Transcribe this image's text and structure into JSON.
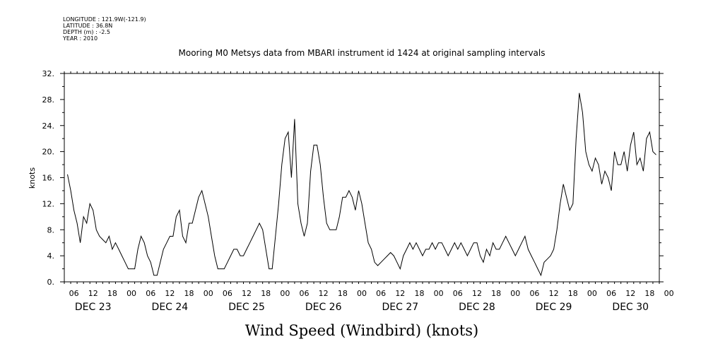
{
  "meta_lines": [
    "LONGITUDE : 121.9W(-121.9)",
    "LATITUDE : 36.8N",
    "DEPTH (m) : -2.5",
    "YEAR : 2010"
  ],
  "chart_data": {
    "type": "line",
    "title": "Mooring M0 Metsys data from MBARI instrument id 1424 at original sampling intervals",
    "xlabel": "Wind Speed (Windbird) (knots)",
    "ylabel": "knots",
    "ylim": [
      0,
      32
    ],
    "yticks": [
      "0.",
      "4.",
      "8.",
      "12.",
      "16.",
      "20.",
      "24.",
      "28.",
      "32."
    ],
    "xlim_hours": [
      0,
      186
    ],
    "hour_tick_labels": [
      "06",
      "12",
      "18",
      "00",
      "06",
      "12",
      "18",
      "00",
      "06",
      "12",
      "18",
      "00",
      "06",
      "12",
      "18",
      "00",
      "06",
      "12",
      "18",
      "00",
      "06",
      "12",
      "18",
      "00",
      "06",
      "12",
      "18",
      "00",
      "06",
      "12",
      "18",
      "00"
    ],
    "day_labels": [
      "DEC 23",
      "DEC 24",
      "DEC 25",
      "DEC 26",
      "DEC 27",
      "DEC 28",
      "DEC 29",
      "DEC 30"
    ],
    "grid": false,
    "series": [
      {
        "x_hours": [
          1,
          2,
          3,
          4,
          5,
          6,
          7,
          8,
          9,
          10,
          11,
          12,
          13,
          14,
          15,
          16,
          17,
          18,
          19,
          20,
          21,
          22,
          23,
          24,
          25,
          26,
          27,
          28,
          29,
          30,
          31,
          32,
          33,
          34,
          35,
          36,
          37,
          38,
          39,
          40,
          41,
          42,
          43,
          44,
          45,
          46,
          47,
          48,
          49,
          50,
          51,
          52,
          53,
          54,
          55,
          56,
          57,
          58,
          59,
          60,
          61,
          62,
          63,
          64,
          65,
          66,
          67,
          68,
          69,
          70,
          71,
          72,
          73,
          74,
          75,
          76,
          77,
          78,
          79,
          80,
          81,
          82,
          83,
          84,
          85,
          86,
          87,
          88,
          89,
          90,
          91,
          92,
          93,
          94,
          95,
          96,
          97,
          98,
          99,
          100,
          101,
          102,
          103,
          104,
          105,
          106,
          107,
          108,
          109,
          110,
          111,
          112,
          113,
          114,
          115,
          116,
          117,
          118,
          119,
          120,
          121,
          122,
          123,
          124,
          125,
          126,
          127,
          128,
          129,
          130,
          131,
          132,
          133,
          134,
          135,
          136,
          137,
          138,
          139,
          140,
          141,
          142,
          143,
          144,
          145,
          146,
          147,
          148,
          149,
          150,
          151,
          152,
          153,
          154,
          155,
          156,
          157,
          158,
          159,
          160,
          161,
          162,
          163,
          164,
          165,
          166,
          167,
          168,
          169,
          170,
          171,
          172,
          173,
          174,
          175,
          176,
          177,
          178,
          179,
          180,
          181,
          182,
          183,
          184,
          185
        ],
        "values": [
          16.5,
          14,
          11,
          9,
          6,
          10,
          9,
          12,
          11,
          8,
          7,
          6.5,
          6,
          7,
          5,
          6,
          5,
          4,
          3,
          2,
          2,
          2,
          5,
          7,
          6,
          4,
          3,
          1,
          1,
          3,
          5,
          6,
          7,
          7,
          10,
          11,
          7,
          6,
          9,
          9,
          11,
          13,
          14,
          12,
          10,
          7,
          4,
          2,
          2,
          2,
          3,
          4,
          5,
          5,
          4,
          4,
          5,
          6,
          7,
          8,
          9,
          8,
          5,
          2,
          2,
          7,
          12,
          18,
          22,
          23,
          16,
          25,
          12,
          9,
          7,
          9,
          17,
          21,
          21,
          18,
          13,
          9,
          8,
          8,
          8,
          10,
          13,
          13,
          14,
          13,
          11,
          14,
          12,
          9,
          6,
          5,
          3,
          2.5,
          3,
          3.5,
          4,
          4.5,
          4,
          3,
          2,
          4,
          5,
          6,
          5,
          6,
          5,
          4,
          5,
          5,
          6,
          5,
          6,
          6,
          5,
          4,
          5,
          6,
          5,
          6,
          5,
          4,
          5,
          6,
          6,
          4,
          3,
          5,
          4,
          6,
          5,
          5,
          6,
          7,
          6,
          5,
          4,
          5,
          6,
          7,
          5,
          4,
          3,
          2,
          1,
          3,
          3.5,
          4,
          5,
          8,
          12,
          15,
          13,
          11,
          12,
          22,
          29,
          26,
          20,
          18,
          17,
          19,
          18,
          15,
          17,
          16,
          14,
          20,
          18,
          18,
          20,
          17,
          21,
          23,
          18,
          19,
          17,
          22,
          23,
          20,
          19.5
        ]
      }
    ]
  }
}
